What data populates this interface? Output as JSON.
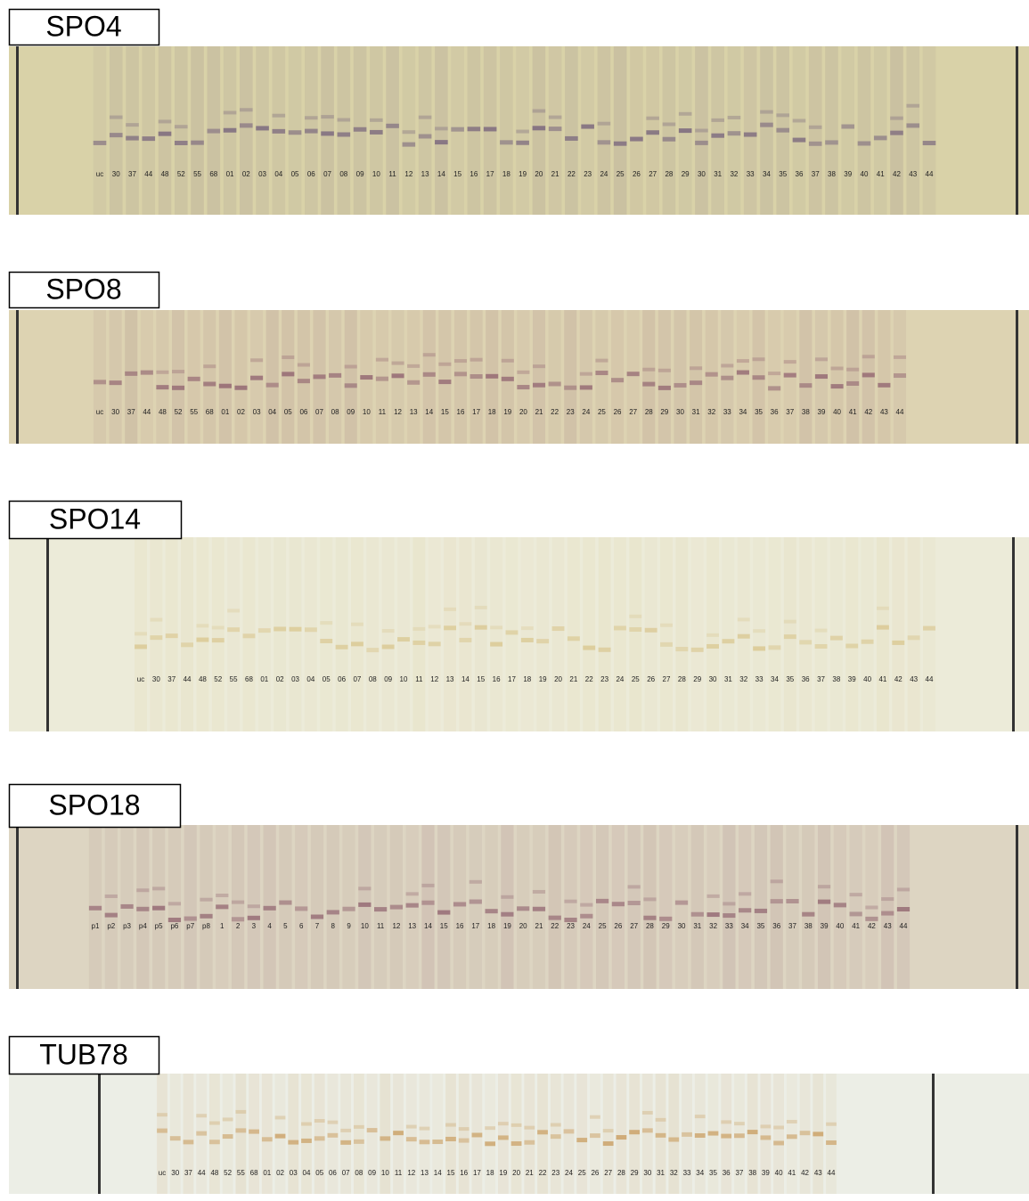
{
  "panels": [
    {
      "title": "SPO4",
      "lanes": [
        "uc",
        "30",
        "37",
        "44",
        "48",
        "52",
        "55",
        "68",
        "01",
        "02",
        "03",
        "04",
        "05",
        "06",
        "07",
        "08",
        "09",
        "10",
        "11",
        "12",
        "13",
        "14",
        "15",
        "16",
        "17",
        "18",
        "19",
        "20",
        "21",
        "22",
        "23",
        "24",
        "25",
        "26",
        "27",
        "28",
        "29",
        "30",
        "31",
        "32",
        "33",
        "34",
        "35",
        "36",
        "37",
        "38",
        "39",
        "40",
        "41",
        "42",
        "43",
        "44"
      ]
    },
    {
      "title": "SPO8",
      "lanes": [
        "uc",
        "30",
        "37",
        "44",
        "48",
        "52",
        "55",
        "68",
        "01",
        "02",
        "03",
        "04",
        "05",
        "06",
        "07",
        "08",
        "09",
        "10",
        "11",
        "12",
        "13",
        "14",
        "15",
        "16",
        "17",
        "18",
        "19",
        "20",
        "21",
        "22",
        "23",
        "24",
        "25",
        "26",
        "27",
        "28",
        "29",
        "30",
        "31",
        "32",
        "33",
        "34",
        "35",
        "36",
        "37",
        "38",
        "39",
        "40",
        "41",
        "42",
        "43",
        "44"
      ]
    },
    {
      "title": "SPO14",
      "lanes": [
        "uc",
        "30",
        "37",
        "44",
        "48",
        "52",
        "55",
        "68",
        "01",
        "02",
        "03",
        "04",
        "05",
        "06",
        "07",
        "08",
        "09",
        "10",
        "11",
        "12",
        "13",
        "14",
        "15",
        "16",
        "17",
        "18",
        "19",
        "20",
        "21",
        "22",
        "23",
        "24",
        "25",
        "26",
        "27",
        "28",
        "29",
        "30",
        "31",
        "32",
        "33",
        "34",
        "35",
        "36",
        "37",
        "38",
        "39",
        "40",
        "41",
        "42",
        "43",
        "44"
      ]
    },
    {
      "title": "SPO18",
      "lanes": [
        "p1",
        "p2",
        "p3",
        "p4",
        "p5",
        "p6",
        "p7",
        "p8",
        "1",
        "2",
        "3",
        "4",
        "5",
        "6",
        "7",
        "8",
        "9",
        "10",
        "11",
        "12",
        "13",
        "14",
        "15",
        "16",
        "17",
        "18",
        "19",
        "20",
        "21",
        "22",
        "23",
        "24",
        "25",
        "26",
        "27",
        "28",
        "29",
        "30",
        "31",
        "32",
        "33",
        "34",
        "35",
        "36",
        "37",
        "38",
        "39",
        "40",
        "41",
        "42",
        "43",
        "44"
      ]
    },
    {
      "title": "TUB78",
      "lanes": [
        "uc",
        "30",
        "37",
        "44",
        "48",
        "52",
        "55",
        "68",
        "01",
        "02",
        "03",
        "04",
        "05",
        "06",
        "07",
        "08",
        "09",
        "10",
        "11",
        "12",
        "13",
        "14",
        "15",
        "16",
        "17",
        "18",
        "19",
        "20",
        "21",
        "22",
        "23",
        "24",
        "25",
        "26",
        "27",
        "28",
        "29",
        "30",
        "31",
        "32",
        "33",
        "34",
        "35",
        "36",
        "37",
        "38",
        "39",
        "40",
        "41",
        "42",
        "43",
        "44"
      ]
    }
  ]
}
